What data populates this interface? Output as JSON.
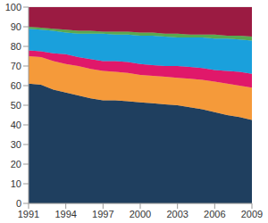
{
  "chart_data": {
    "type": "area",
    "stacked": true,
    "grid": true,
    "x": [
      1991,
      1992,
      1993,
      1994,
      1995,
      1996,
      1997,
      1998,
      1999,
      2000,
      2001,
      2002,
      2003,
      2004,
      2005,
      2006,
      2007,
      2008,
      2009
    ],
    "xlim": [
      1991,
      2009
    ],
    "xticks": [
      1991,
      1994,
      1997,
      2000,
      2003,
      2006,
      2009
    ],
    "ylim": [
      0,
      100
    ],
    "yticks": [
      0,
      10,
      20,
      30,
      40,
      50,
      60,
      70,
      80,
      90,
      100
    ],
    "series": [
      {
        "color": "#1f3f5f",
        "values": [
          61,
          60.5,
          58,
          56.5,
          55,
          53.5,
          52.5,
          52.5,
          52,
          51.5,
          51,
          50.5,
          50,
          49,
          48,
          46.5,
          45,
          44,
          42.5
        ]
      },
      {
        "color": "#f59a3a",
        "values": [
          14,
          14,
          14.5,
          14.5,
          15,
          15,
          15,
          14.5,
          14.5,
          14,
          14,
          14,
          14,
          14.5,
          15,
          15.5,
          16,
          16,
          16.5
        ]
      },
      {
        "color": "#e0186a",
        "values": [
          3,
          3,
          4,
          5,
          4.5,
          5,
          5,
          5.5,
          5.5,
          5.5,
          5.5,
          5.5,
          6,
          6,
          6,
          6,
          6.5,
          7,
          7
        ]
      },
      {
        "color": "#1aa0dc",
        "values": [
          11,
          11,
          11.5,
          11,
          12,
          13,
          14,
          13.5,
          14,
          14.5,
          15,
          15,
          14.5,
          15,
          15.5,
          16,
          16.5,
          16.5,
          17
        ]
      },
      {
        "color": "#5aa850",
        "values": [
          1,
          1,
          1,
          1.5,
          1.5,
          1.5,
          1,
          1.5,
          1.5,
          1.5,
          1.5,
          1.5,
          2,
          1.5,
          1.5,
          2,
          1.5,
          2,
          2
        ]
      },
      {
        "color": "#9b1b42",
        "values": [
          10,
          10.5,
          11,
          11.5,
          12,
          12,
          12.5,
          12.5,
          12.5,
          13,
          13,
          13.5,
          13.5,
          14,
          14,
          14,
          14.5,
          14.5,
          15
        ]
      }
    ]
  }
}
